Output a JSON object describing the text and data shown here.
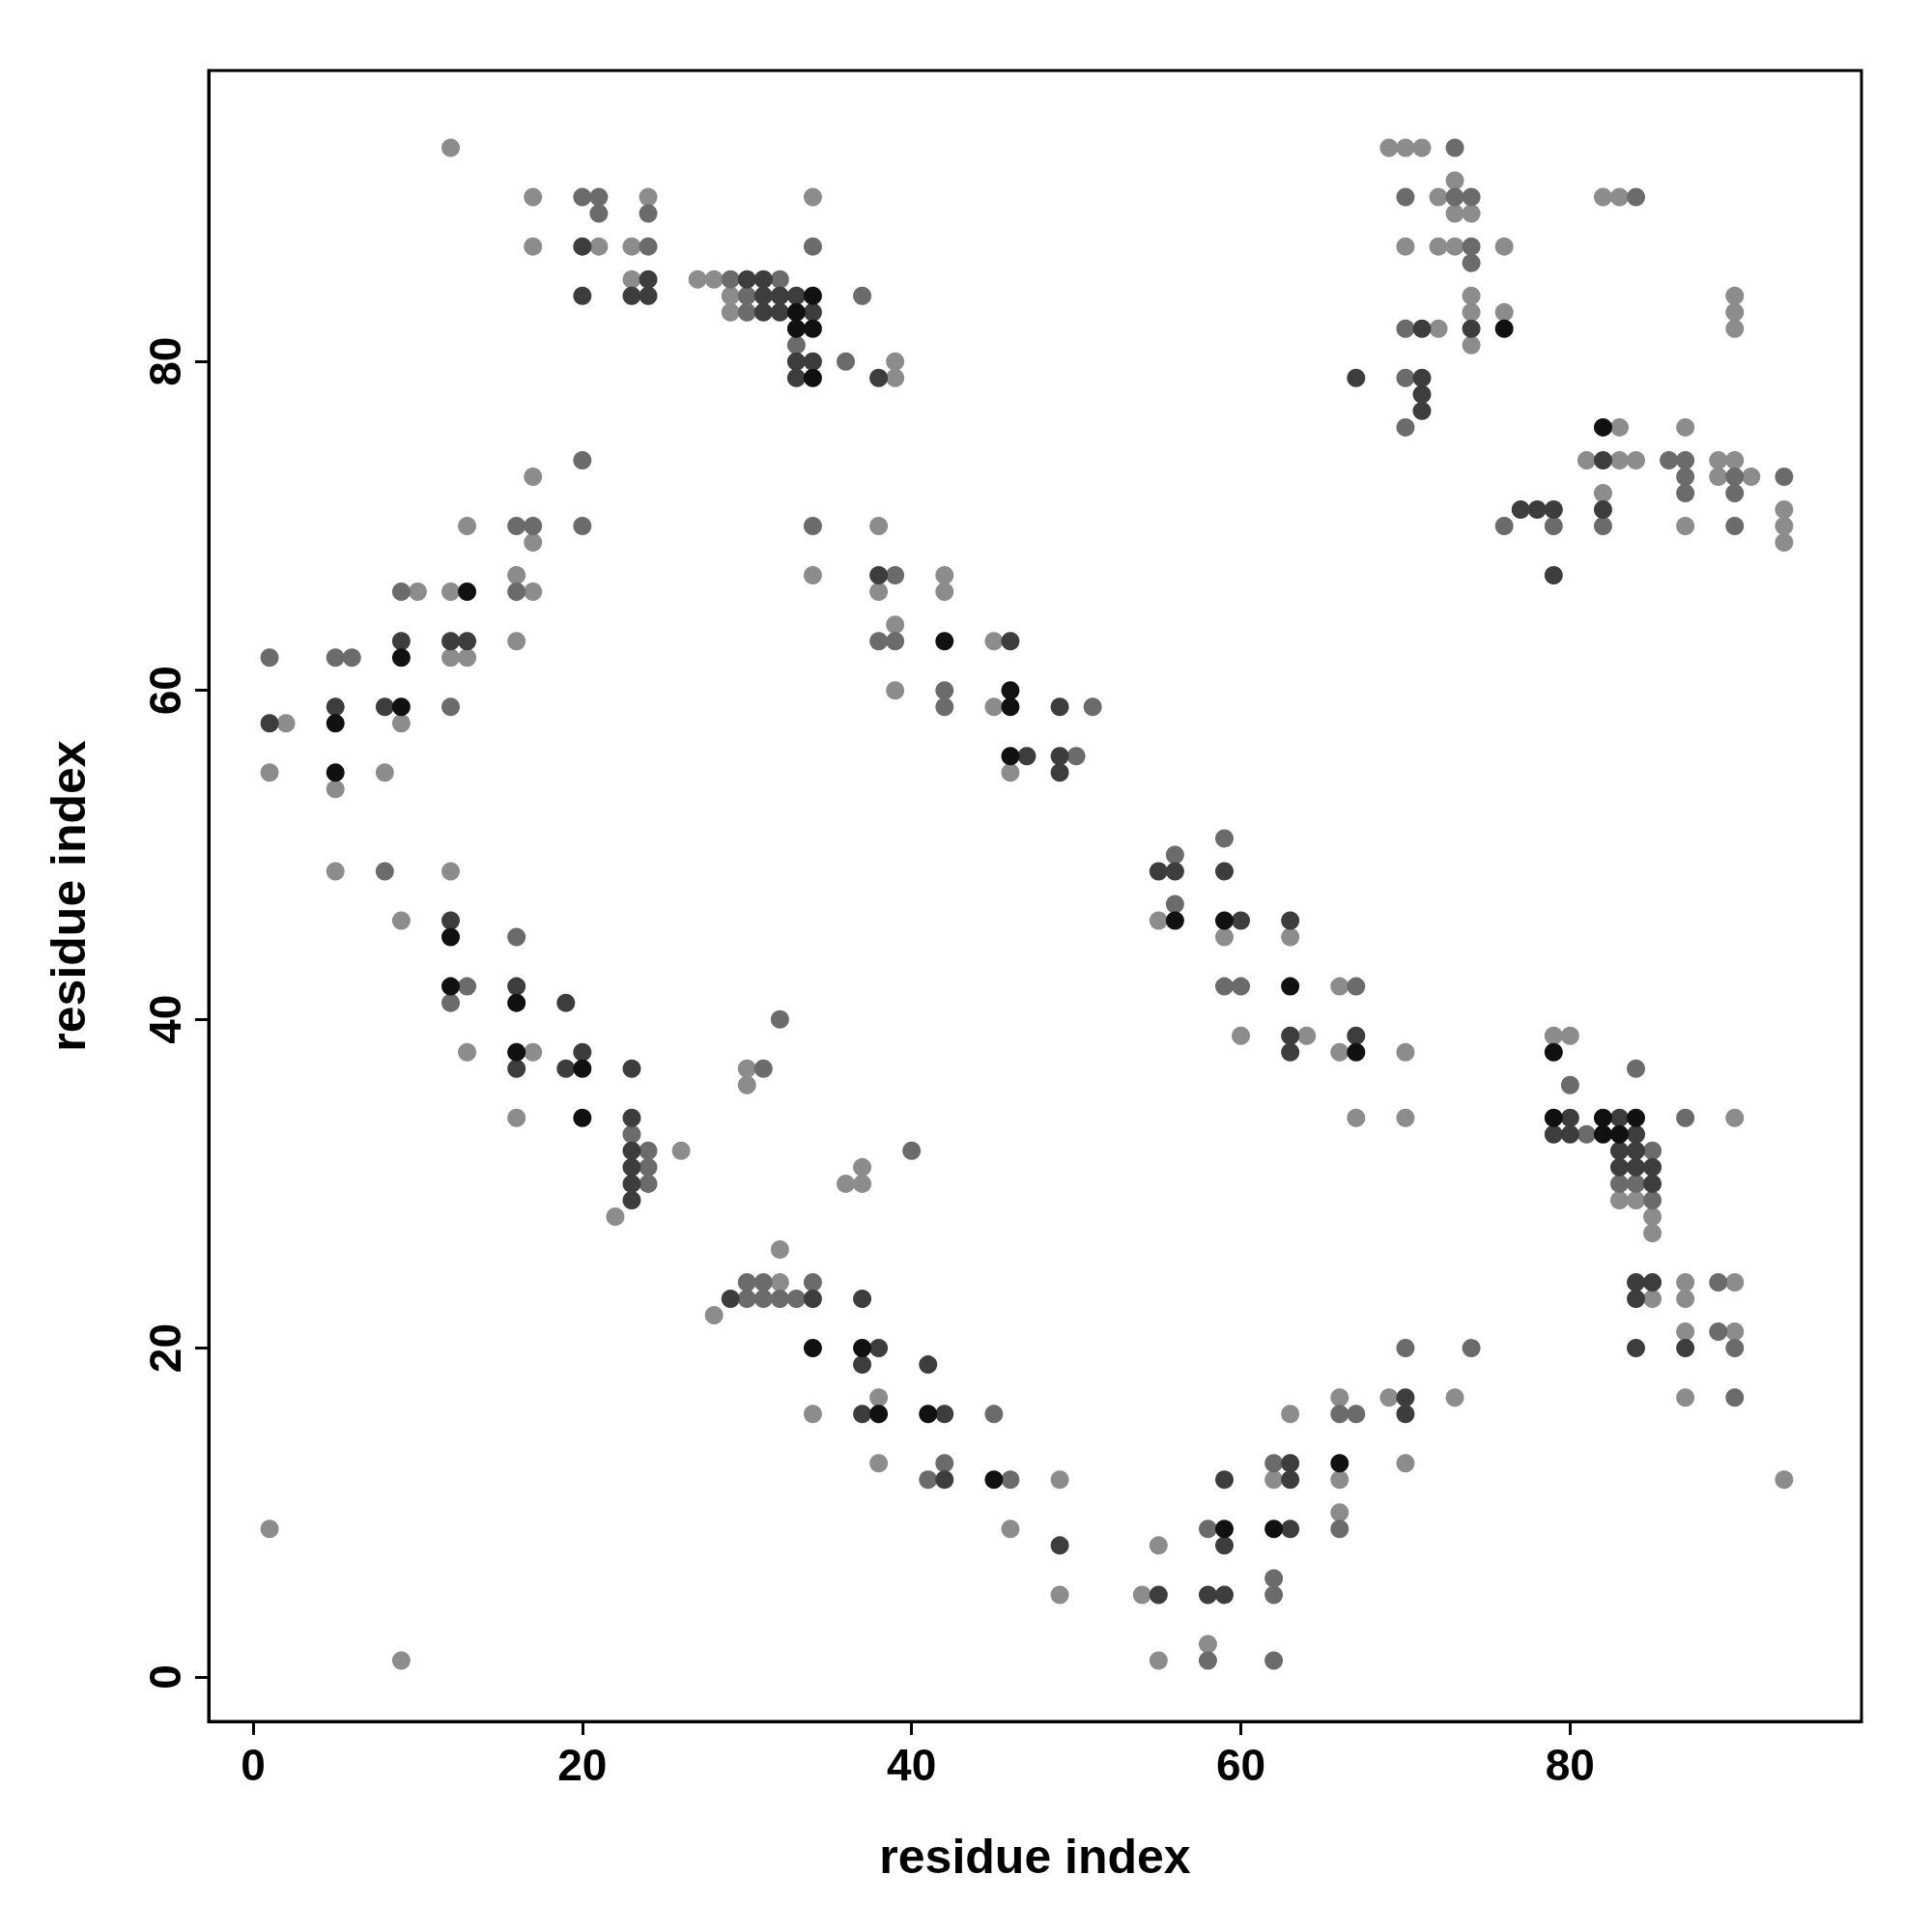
{
  "chart_data": {
    "type": "scatter",
    "xlabel": "residue index",
    "ylabel": "residue index",
    "xlim": [
      -2.7,
      97.7
    ],
    "ylim": [
      -2.7,
      97.7
    ],
    "xticks": [
      0,
      20,
      40,
      60,
      80
    ],
    "yticks": [
      0,
      20,
      40,
      60,
      80
    ],
    "marker": "circle",
    "series": [
      {
        "color": "#8c8c8c",
        "x": [
          12,
          69,
          70,
          71,
          73,
          17,
          24,
          34,
          72,
          82,
          83,
          73,
          74,
          17,
          21,
          23,
          70,
          72,
          73,
          76,
          23,
          27,
          28,
          29,
          74,
          90,
          29,
          74,
          76,
          90,
          72,
          90,
          74,
          39,
          39,
          83,
          87,
          81,
          83,
          84,
          89,
          90,
          89,
          91,
          17,
          82,
          93,
          13,
          38,
          87,
          93,
          17,
          93,
          16,
          34,
          42,
          10,
          12,
          17,
          38,
          42,
          39,
          16,
          45,
          12,
          13,
          39,
          45,
          2,
          9,
          1,
          8,
          46,
          5,
          5,
          12,
          9,
          55,
          59,
          63,
          66,
          60,
          64,
          79,
          80,
          13,
          17,
          66,
          70,
          30,
          30,
          16,
          67,
          70,
          90,
          26,
          37,
          36,
          37,
          83,
          84,
          22,
          85,
          85,
          32,
          32,
          87,
          90,
          85,
          87,
          28,
          87,
          90,
          38,
          66,
          69,
          73,
          87,
          34,
          63,
          38,
          70,
          49,
          62,
          66,
          93,
          66,
          1,
          46,
          55,
          49,
          54,
          58,
          9,
          55
        ],
        "values": [
          93,
          93,
          93,
          93,
          91,
          90,
          90,
          90,
          90,
          90,
          90,
          89,
          89,
          87,
          87,
          87,
          87,
          87,
          87,
          87,
          85,
          85,
          85,
          84,
          84,
          84,
          83,
          83,
          83,
          83,
          82,
          82,
          81,
          80,
          79,
          76,
          76,
          74,
          74,
          74,
          74,
          74,
          73,
          73,
          73,
          72,
          71,
          70,
          70,
          70,
          70,
          69,
          69,
          67,
          67,
          67,
          66,
          66,
          66,
          66,
          66,
          64,
          63,
          63,
          62,
          62,
          60,
          59,
          58,
          58,
          55,
          55,
          55,
          54,
          49,
          49,
          46,
          46,
          45,
          45,
          42,
          39,
          39,
          39,
          39,
          38,
          38,
          38,
          38,
          37,
          36,
          34,
          34,
          34,
          34,
          32,
          31,
          30,
          30,
          29,
          29,
          28,
          28,
          27,
          26,
          24,
          24,
          24,
          23,
          23,
          22,
          21,
          21,
          17,
          17,
          17,
          17,
          17,
          16,
          16,
          13,
          13,
          12,
          12,
          12,
          12,
          10,
          9,
          9,
          8,
          5,
          5,
          2,
          1,
          1
        ]
      },
      {
        "color": "#6b6b6b",
        "x": [
          73,
          20,
          21,
          70,
          73,
          74,
          84,
          21,
          24,
          24,
          34,
          74,
          74,
          29,
          32,
          30,
          37,
          30,
          70,
          33,
          36,
          70,
          70,
          86,
          87,
          20,
          87,
          90,
          93,
          87,
          90,
          16,
          17,
          20,
          34,
          76,
          79,
          82,
          90,
          39,
          9,
          16,
          38,
          39,
          1,
          5,
          6,
          42,
          12,
          42,
          51,
          50,
          59,
          56,
          8,
          56,
          16,
          13,
          59,
          60,
          67,
          12,
          32,
          31,
          84,
          80,
          87,
          23,
          81,
          24,
          40,
          85,
          24,
          24,
          83,
          84,
          85,
          30,
          31,
          34,
          89,
          30,
          31,
          32,
          33,
          89,
          70,
          74,
          90,
          90,
          45,
          66,
          67,
          42,
          62,
          41,
          46,
          58,
          66,
          62,
          62,
          58,
          62
        ],
        "values": [
          93,
          90,
          90,
          90,
          90,
          90,
          90,
          89,
          89,
          87,
          87,
          87,
          86,
          85,
          85,
          84,
          84,
          83,
          82,
          81,
          80,
          79,
          76,
          74,
          74,
          74,
          73,
          73,
          73,
          72,
          72,
          70,
          70,
          70,
          70,
          70,
          70,
          70,
          70,
          67,
          66,
          66,
          63,
          63,
          62,
          62,
          62,
          60,
          59,
          59,
          59,
          56,
          51,
          50,
          49,
          47,
          45,
          42,
          42,
          42,
          42,
          41,
          40,
          37,
          37,
          36,
          34,
          33,
          33,
          32,
          32,
          32,
          31,
          30,
          30,
          30,
          29,
          24,
          24,
          24,
          24,
          23,
          23,
          23,
          23,
          21,
          20,
          20,
          20,
          17,
          16,
          16,
          16,
          13,
          13,
          12,
          12,
          9,
          9,
          6,
          5,
          1,
          1
        ]
      },
      {
        "color": "#3d3d3d",
        "x": [
          20,
          24,
          30,
          31,
          20,
          23,
          24,
          31,
          32,
          33,
          31,
          32,
          34,
          71,
          74,
          33,
          34,
          33,
          38,
          67,
          71,
          71,
          71,
          82,
          77,
          78,
          79,
          82,
          38,
          79,
          9,
          12,
          13,
          46,
          5,
          8,
          49,
          1,
          47,
          49,
          49,
          55,
          56,
          59,
          12,
          60,
          63,
          16,
          19,
          63,
          67,
          20,
          63,
          16,
          19,
          23,
          23,
          80,
          83,
          79,
          80,
          84,
          23,
          83,
          84,
          23,
          83,
          84,
          85,
          23,
          85,
          23,
          84,
          85,
          29,
          34,
          37,
          84,
          38,
          84,
          87,
          37,
          41,
          70,
          37,
          42,
          70,
          63,
          42,
          59,
          63,
          63,
          49,
          59,
          55,
          58,
          59
        ],
        "values": [
          87,
          85,
          85,
          85,
          84,
          84,
          84,
          84,
          84,
          84,
          83,
          83,
          83,
          82,
          82,
          80,
          80,
          79,
          79,
          79,
          79,
          78,
          77,
          74,
          71,
          71,
          71,
          71,
          67,
          67,
          63,
          63,
          63,
          63,
          59,
          59,
          59,
          58,
          56,
          56,
          55,
          49,
          49,
          49,
          46,
          46,
          46,
          42,
          41,
          39,
          39,
          38,
          38,
          37,
          37,
          37,
          34,
          34,
          34,
          33,
          33,
          33,
          32,
          32,
          32,
          31,
          31,
          31,
          31,
          30,
          30,
          29,
          24,
          24,
          23,
          23,
          23,
          23,
          20,
          20,
          20,
          19,
          19,
          17,
          16,
          16,
          16,
          13,
          12,
          12,
          12,
          9,
          8,
          8,
          5,
          5,
          5
        ]
      },
      {
        "color": "#111111",
        "x": [
          34,
          33,
          33,
          34,
          34,
          76,
          82,
          13,
          42,
          9,
          46,
          9,
          46,
          5,
          46,
          5,
          56,
          59,
          12,
          12,
          63,
          16,
          16,
          67,
          79,
          20,
          20,
          79,
          82,
          84,
          82,
          83,
          34,
          37,
          38,
          41,
          45,
          66,
          59,
          62
        ],
        "values": [
          84,
          83,
          82,
          82,
          79,
          82,
          76,
          66,
          63,
          62,
          60,
          59,
          59,
          58,
          56,
          55,
          46,
          46,
          45,
          42,
          42,
          41,
          38,
          38,
          38,
          37,
          34,
          34,
          34,
          34,
          33,
          33,
          20,
          20,
          16,
          16,
          12,
          13,
          9,
          9
        ]
      }
    ]
  }
}
